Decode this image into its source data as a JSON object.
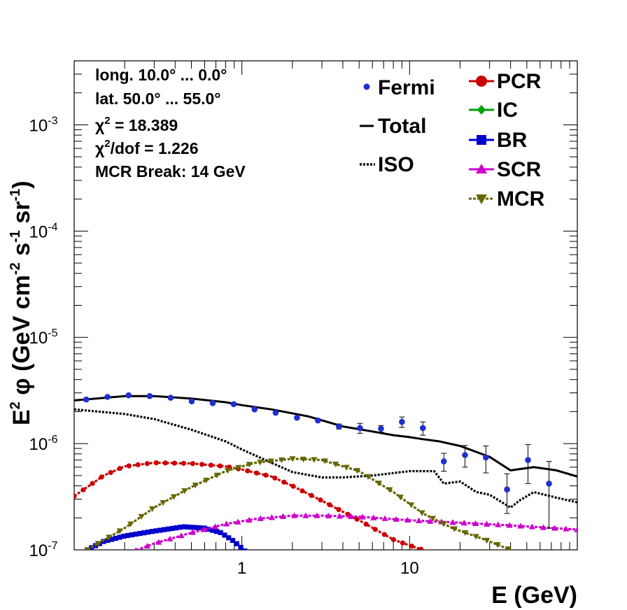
{
  "chart_data": {
    "type": "line",
    "x_scale": "log",
    "y_scale": "log",
    "xlim": [
      0.1,
      100
    ],
    "ylim": [
      1e-07,
      0.004
    ],
    "xlabel": "E (GeV)",
    "ylabel_parts": {
      "a": "E",
      "a_sup": "2",
      "b": " φ (GeV cm",
      "b_sup": "-2",
      "c": " s",
      "c_sup": "-1",
      "d": " sr",
      "d_sup": "-1",
      "e": ")"
    },
    "x_ticks": [
      "1",
      "10"
    ],
    "y_ticks": [
      {
        "base": "10",
        "exp": "-7",
        "value": 1e-07
      },
      {
        "base": "10",
        "exp": "-6",
        "value": 1e-06
      },
      {
        "base": "10",
        "exp": "-5",
        "value": 1e-05
      },
      {
        "base": "10",
        "exp": "-4",
        "value": 0.0001
      },
      {
        "base": "10",
        "exp": "-3",
        "value": 0.001
      }
    ],
    "annotations": {
      "long": "long. 10.0° ... 0.0°",
      "lat": "lat. 50.0° ... 55.0°",
      "chi2_symbol": "χ",
      "chi2_sup": "2",
      "chi2_value": " = 18.389",
      "chi2dof_value": "/dof = 1.226",
      "break": "MCR Break: 14 GeV"
    },
    "legend": [
      {
        "key": "Fermi",
        "label": "Fermi",
        "color": "#1f2fd0",
        "style": "marker-dot"
      },
      {
        "key": "Total",
        "label": "Total",
        "color": "#000000",
        "style": "line"
      },
      {
        "key": "ISO",
        "label": "ISO",
        "color": "#000000",
        "style": "dotted"
      },
      {
        "key": "PCR",
        "label": "PCR",
        "color": "#cc0000",
        "style": "circle"
      },
      {
        "key": "IC",
        "label": "IC",
        "color": "#00a000",
        "style": "diamond"
      },
      {
        "key": "BR",
        "label": "BR",
        "color": "#0000cc",
        "style": "square"
      },
      {
        "key": "SCR",
        "label": "SCR",
        "color": "#cc00cc",
        "style": "triangle-up"
      },
      {
        "key": "MCR",
        "label": "MCR",
        "color": "#666600",
        "style": "triangle-down"
      }
    ],
    "fermi": {
      "x": [
        0.118,
        0.158,
        0.211,
        0.282,
        0.376,
        0.502,
        0.67,
        0.894,
        1.19,
        1.59,
        2.13,
        2.84,
        3.79,
        5.06,
        6.75,
        9.0,
        12.0,
        16.0,
        21.4,
        28.5,
        38.1,
        50.8,
        67.8
      ],
      "y": [
        2.6e-06,
        2.75e-06,
        2.85e-06,
        2.8e-06,
        2.7e-06,
        2.5e-06,
        2.4e-06,
        2.35e-06,
        2.1e-06,
        1.95e-06,
        1.75e-06,
        1.65e-06,
        1.45e-06,
        1.4e-06,
        1.38e-06,
        1.6e-06,
        1.4e-06,
        6.8e-07,
        7.8e-07,
        7.4e-07,
        3.7e-07,
        7e-07,
        4.2e-07
      ],
      "err": [
        0,
        0,
        0,
        0,
        0,
        0,
        0,
        0,
        0,
        0,
        0,
        0,
        8e-08,
        1.5e-07,
        1e-07,
        1.8e-07,
        2e-07,
        1.3e-07,
        1.8e-07,
        2.1e-07,
        1.5e-07,
        2.8e-07,
        2.6e-07
      ]
    },
    "series": [
      {
        "name": "Total",
        "color": "#000000",
        "style": "line",
        "x": [
          0.1,
          0.2,
          0.3,
          0.5,
          0.8,
          1.0,
          1.5,
          2.5,
          4,
          6,
          8,
          10,
          12,
          15,
          20,
          30,
          40,
          55,
          75,
          100
        ],
        "y": [
          2.55e-06,
          2.8e-06,
          2.8e-06,
          2.65e-06,
          2.45e-06,
          2.3e-06,
          2.1e-06,
          1.8e-06,
          1.45e-06,
          1.3e-06,
          1.2e-06,
          1.15e-06,
          1.1e-06,
          1.05e-06,
          9.5e-07,
          7.5e-07,
          5.6e-07,
          6e-07,
          5.6e-07,
          4.9e-07
        ]
      },
      {
        "name": "ISO",
        "color": "#000000",
        "style": "dotted",
        "x": [
          0.1,
          0.2,
          0.3,
          0.5,
          0.8,
          1.0,
          1.5,
          2.0,
          3.0,
          4.0,
          6.0,
          10,
          14,
          16,
          20,
          25,
          30,
          40,
          45,
          55,
          75,
          100
        ],
        "y": [
          2.1e-06,
          1.9e-06,
          1.7e-06,
          1.35e-06,
          1.05e-06,
          8.8e-07,
          6.6e-07,
          5.4e-07,
          4.8e-07,
          4.8e-07,
          5e-07,
          5.5e-07,
          5.5e-07,
          4.2e-07,
          4.4e-07,
          3.5e-07,
          3.3e-07,
          2.5e-07,
          2.9e-07,
          3.5e-07,
          3.1e-07,
          2.8e-07
        ]
      },
      {
        "name": "PCR",
        "color": "#cc0000",
        "style": "circle",
        "x": [
          0.1,
          0.15,
          0.2,
          0.3,
          0.5,
          0.8,
          1.0,
          1.5,
          2.0,
          3.0,
          5.0,
          8.0,
          10,
          12,
          15
        ],
        "y": [
          3.2e-07,
          5e-07,
          6.1e-07,
          6.6e-07,
          6.5e-07,
          6.1e-07,
          5.7e-07,
          4.9e-07,
          4e-07,
          2.9e-07,
          1.9e-07,
          1.25e-07,
          1.1e-07,
          1e-07,
          9e-08
        ]
      },
      {
        "name": "BR",
        "color": "#0000cc",
        "style": "square",
        "x": [
          0.12,
          0.15,
          0.2,
          0.3,
          0.45,
          0.6,
          0.75,
          0.9,
          1.1
        ],
        "y": [
          1e-07,
          1.2e-07,
          1.35e-07,
          1.5e-07,
          1.65e-07,
          1.6e-07,
          1.45e-07,
          1.2e-07,
          9e-08
        ]
      },
      {
        "name": "SCR",
        "color": "#cc00cc",
        "style": "triangle-up",
        "x": [
          0.2,
          0.3,
          0.5,
          0.8,
          1.2,
          2.0,
          3.0,
          5.0,
          10,
          20,
          40,
          100
        ],
        "y": [
          9e-08,
          1.15e-07,
          1.45e-07,
          1.75e-07,
          1.95e-07,
          2.1e-07,
          2.1e-07,
          2.05e-07,
          1.9e-07,
          1.8e-07,
          1.7e-07,
          1.55e-07
        ]
      },
      {
        "name": "MCR",
        "color": "#666600",
        "style": "triangle-down",
        "x": [
          0.12,
          0.2,
          0.3,
          0.5,
          0.8,
          1.2,
          2.0,
          3.0,
          5.0,
          8.0,
          12,
          18,
          28,
          40,
          45
        ],
        "y": [
          1e-07,
          1.6e-07,
          2.5e-07,
          3.9e-07,
          5.5e-07,
          6.6e-07,
          7.2e-07,
          7e-07,
          5.5e-07,
          3.5e-07,
          2.2e-07,
          1.6e-07,
          1.25e-07,
          1e-07,
          9e-08
        ]
      }
    ]
  }
}
